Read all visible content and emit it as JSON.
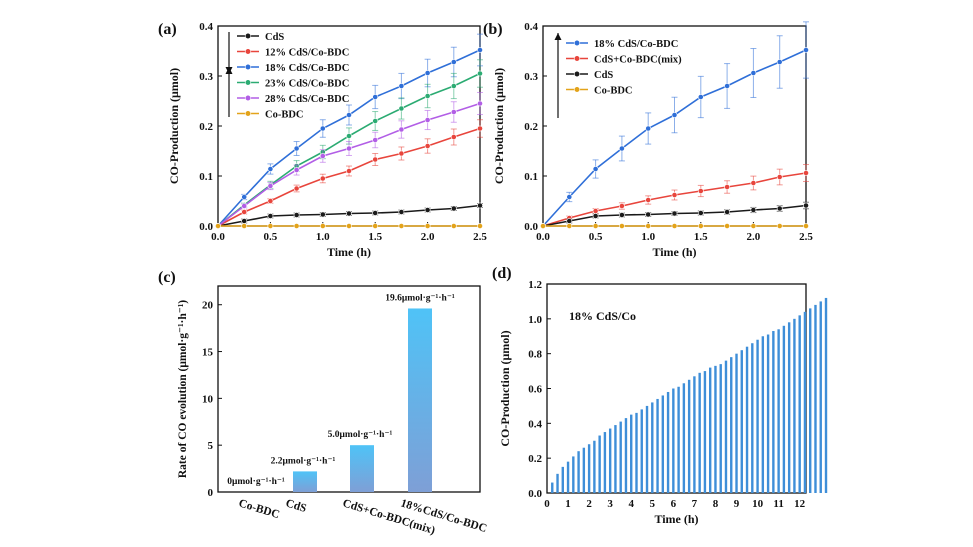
{
  "chart_data": [
    {
      "panel": "(a)",
      "type": "line",
      "xlabel": "Time (h)",
      "ylabel": "CO-Production (μmol)",
      "xlim": [
        0,
        2.5
      ],
      "ylim": [
        0,
        0.4
      ],
      "xticks": [
        "0.0",
        "0.5",
        "1.0",
        "1.5",
        "2.0",
        "2.5"
      ],
      "yticks": [
        "0.0",
        "0.1",
        "0.2",
        "0.3",
        "0.4"
      ],
      "legend_position": "top-left",
      "x": [
        0,
        0.25,
        0.5,
        0.75,
        1.0,
        1.25,
        1.5,
        1.75,
        2.0,
        2.25,
        2.5
      ],
      "series": [
        {
          "name": "CdS",
          "color": "#1a1a1a",
          "values": [
            0,
            0.01,
            0.02,
            0.022,
            0.023,
            0.025,
            0.026,
            0.028,
            0.032,
            0.035,
            0.041
          ]
        },
        {
          "name": "12% CdS/Co-BDC",
          "color": "#e8453c",
          "values": [
            0,
            0.028,
            0.05,
            0.075,
            0.095,
            0.11,
            0.133,
            0.145,
            0.16,
            0.178,
            0.195
          ]
        },
        {
          "name": "18% CdS/Co-BDC",
          "color": "#2f6fd8",
          "values": [
            0,
            0.058,
            0.114,
            0.155,
            0.195,
            0.222,
            0.258,
            0.28,
            0.306,
            0.328,
            0.352
          ]
        },
        {
          "name": "23% CdS/Co-BDC",
          "color": "#2bab72",
          "values": [
            0,
            0.042,
            0.082,
            0.12,
            0.148,
            0.18,
            0.21,
            0.235,
            0.26,
            0.28,
            0.305
          ]
        },
        {
          "name": "28% CdS/Co-BDC",
          "color": "#b25ee6",
          "values": [
            0,
            0.04,
            0.08,
            0.112,
            0.14,
            0.155,
            0.172,
            0.193,
            0.212,
            0.228,
            0.245
          ]
        },
        {
          "name": "Co-BDC",
          "color": "#e3a31a",
          "values": [
            0,
            0,
            0,
            0,
            0,
            0,
            0,
            0,
            0,
            0,
            0
          ]
        }
      ]
    },
    {
      "panel": "(b)",
      "type": "line",
      "xlabel": "Time (h)",
      "ylabel": "CO-Production (μmol)",
      "xlim": [
        0,
        2.5
      ],
      "ylim": [
        0,
        0.4
      ],
      "xticks": [
        "0.0",
        "0.5",
        "1.0",
        "1.5",
        "2.0",
        "2.5"
      ],
      "yticks": [
        "0.0",
        "0.1",
        "0.2",
        "0.3",
        "0.4"
      ],
      "legend_position": "top-left",
      "x": [
        0,
        0.25,
        0.5,
        0.75,
        1.0,
        1.25,
        1.5,
        1.75,
        2.0,
        2.25,
        2.5
      ],
      "series": [
        {
          "name": "18% CdS/Co-BDC",
          "color": "#2f6fd8",
          "values": [
            0,
            0.058,
            0.114,
            0.155,
            0.195,
            0.222,
            0.258,
            0.28,
            0.306,
            0.328,
            0.352
          ]
        },
        {
          "name": "CdS+Co-BDC(mix)",
          "color": "#e8453c",
          "values": [
            0,
            0.016,
            0.03,
            0.04,
            0.052,
            0.062,
            0.07,
            0.078,
            0.086,
            0.098,
            0.106
          ]
        },
        {
          "name": "CdS",
          "color": "#1a1a1a",
          "values": [
            0,
            0.01,
            0.02,
            0.022,
            0.023,
            0.025,
            0.026,
            0.028,
            0.032,
            0.035,
            0.041
          ]
        },
        {
          "name": "Co-BDC",
          "color": "#e3a31a",
          "values": [
            0,
            0,
            0,
            0,
            0,
            0,
            0,
            0,
            0,
            0,
            0
          ]
        }
      ]
    },
    {
      "panel": "(c)",
      "type": "bar",
      "ylabel": "Rate of CO evolution (μmol·g⁻¹·h⁻¹)",
      "ylim": [
        0,
        22
      ],
      "yticks": [
        "0",
        "5",
        "10",
        "15",
        "20"
      ],
      "categories": [
        "Co-BDC",
        "CdS",
        "CdS+Co-BDC(mix)",
        "18%CdS/Co-BDC"
      ],
      "values": [
        0,
        2.2,
        5.0,
        19.6
      ],
      "labels": [
        "0μmol·g⁻¹·h⁻¹",
        "2.2μmol·g⁻¹·h⁻¹",
        "5.0μmol·g⁻¹·h⁻¹",
        "19.6μmol·g⁻¹·h⁻¹"
      ],
      "color_top": "#4fc3f7",
      "color_bottom": "#7e9fd6"
    },
    {
      "panel": "(d)",
      "type": "bar",
      "annotation": "18% CdS/Co",
      "xlabel": "Time (h)",
      "ylabel": "CO-Production (μmol)",
      "xlim": [
        0,
        12.3
      ],
      "ylim": [
        0,
        1.2
      ],
      "xticks": [
        "0",
        "1",
        "2",
        "3",
        "4",
        "5",
        "6",
        "7",
        "8",
        "9",
        "10",
        "11",
        "12"
      ],
      "yticks": [
        "0.0",
        "0.2",
        "0.4",
        "0.6",
        "0.8",
        "1.0",
        "1.2"
      ],
      "x_start": 0.25,
      "x_step": 0.25,
      "values": [
        0.06,
        0.11,
        0.15,
        0.18,
        0.21,
        0.24,
        0.26,
        0.28,
        0.3,
        0.33,
        0.35,
        0.37,
        0.39,
        0.41,
        0.43,
        0.45,
        0.46,
        0.48,
        0.5,
        0.52,
        0.54,
        0.56,
        0.58,
        0.6,
        0.61,
        0.63,
        0.65,
        0.67,
        0.69,
        0.7,
        0.72,
        0.73,
        0.74,
        0.76,
        0.78,
        0.8,
        0.82,
        0.84,
        0.86,
        0.88,
        0.9,
        0.91,
        0.93,
        0.94,
        0.96,
        0.98,
        1.0,
        1.02,
        1.04,
        1.06,
        1.08,
        1.1,
        1.12
      ],
      "color": "#3e8ed8"
    }
  ]
}
